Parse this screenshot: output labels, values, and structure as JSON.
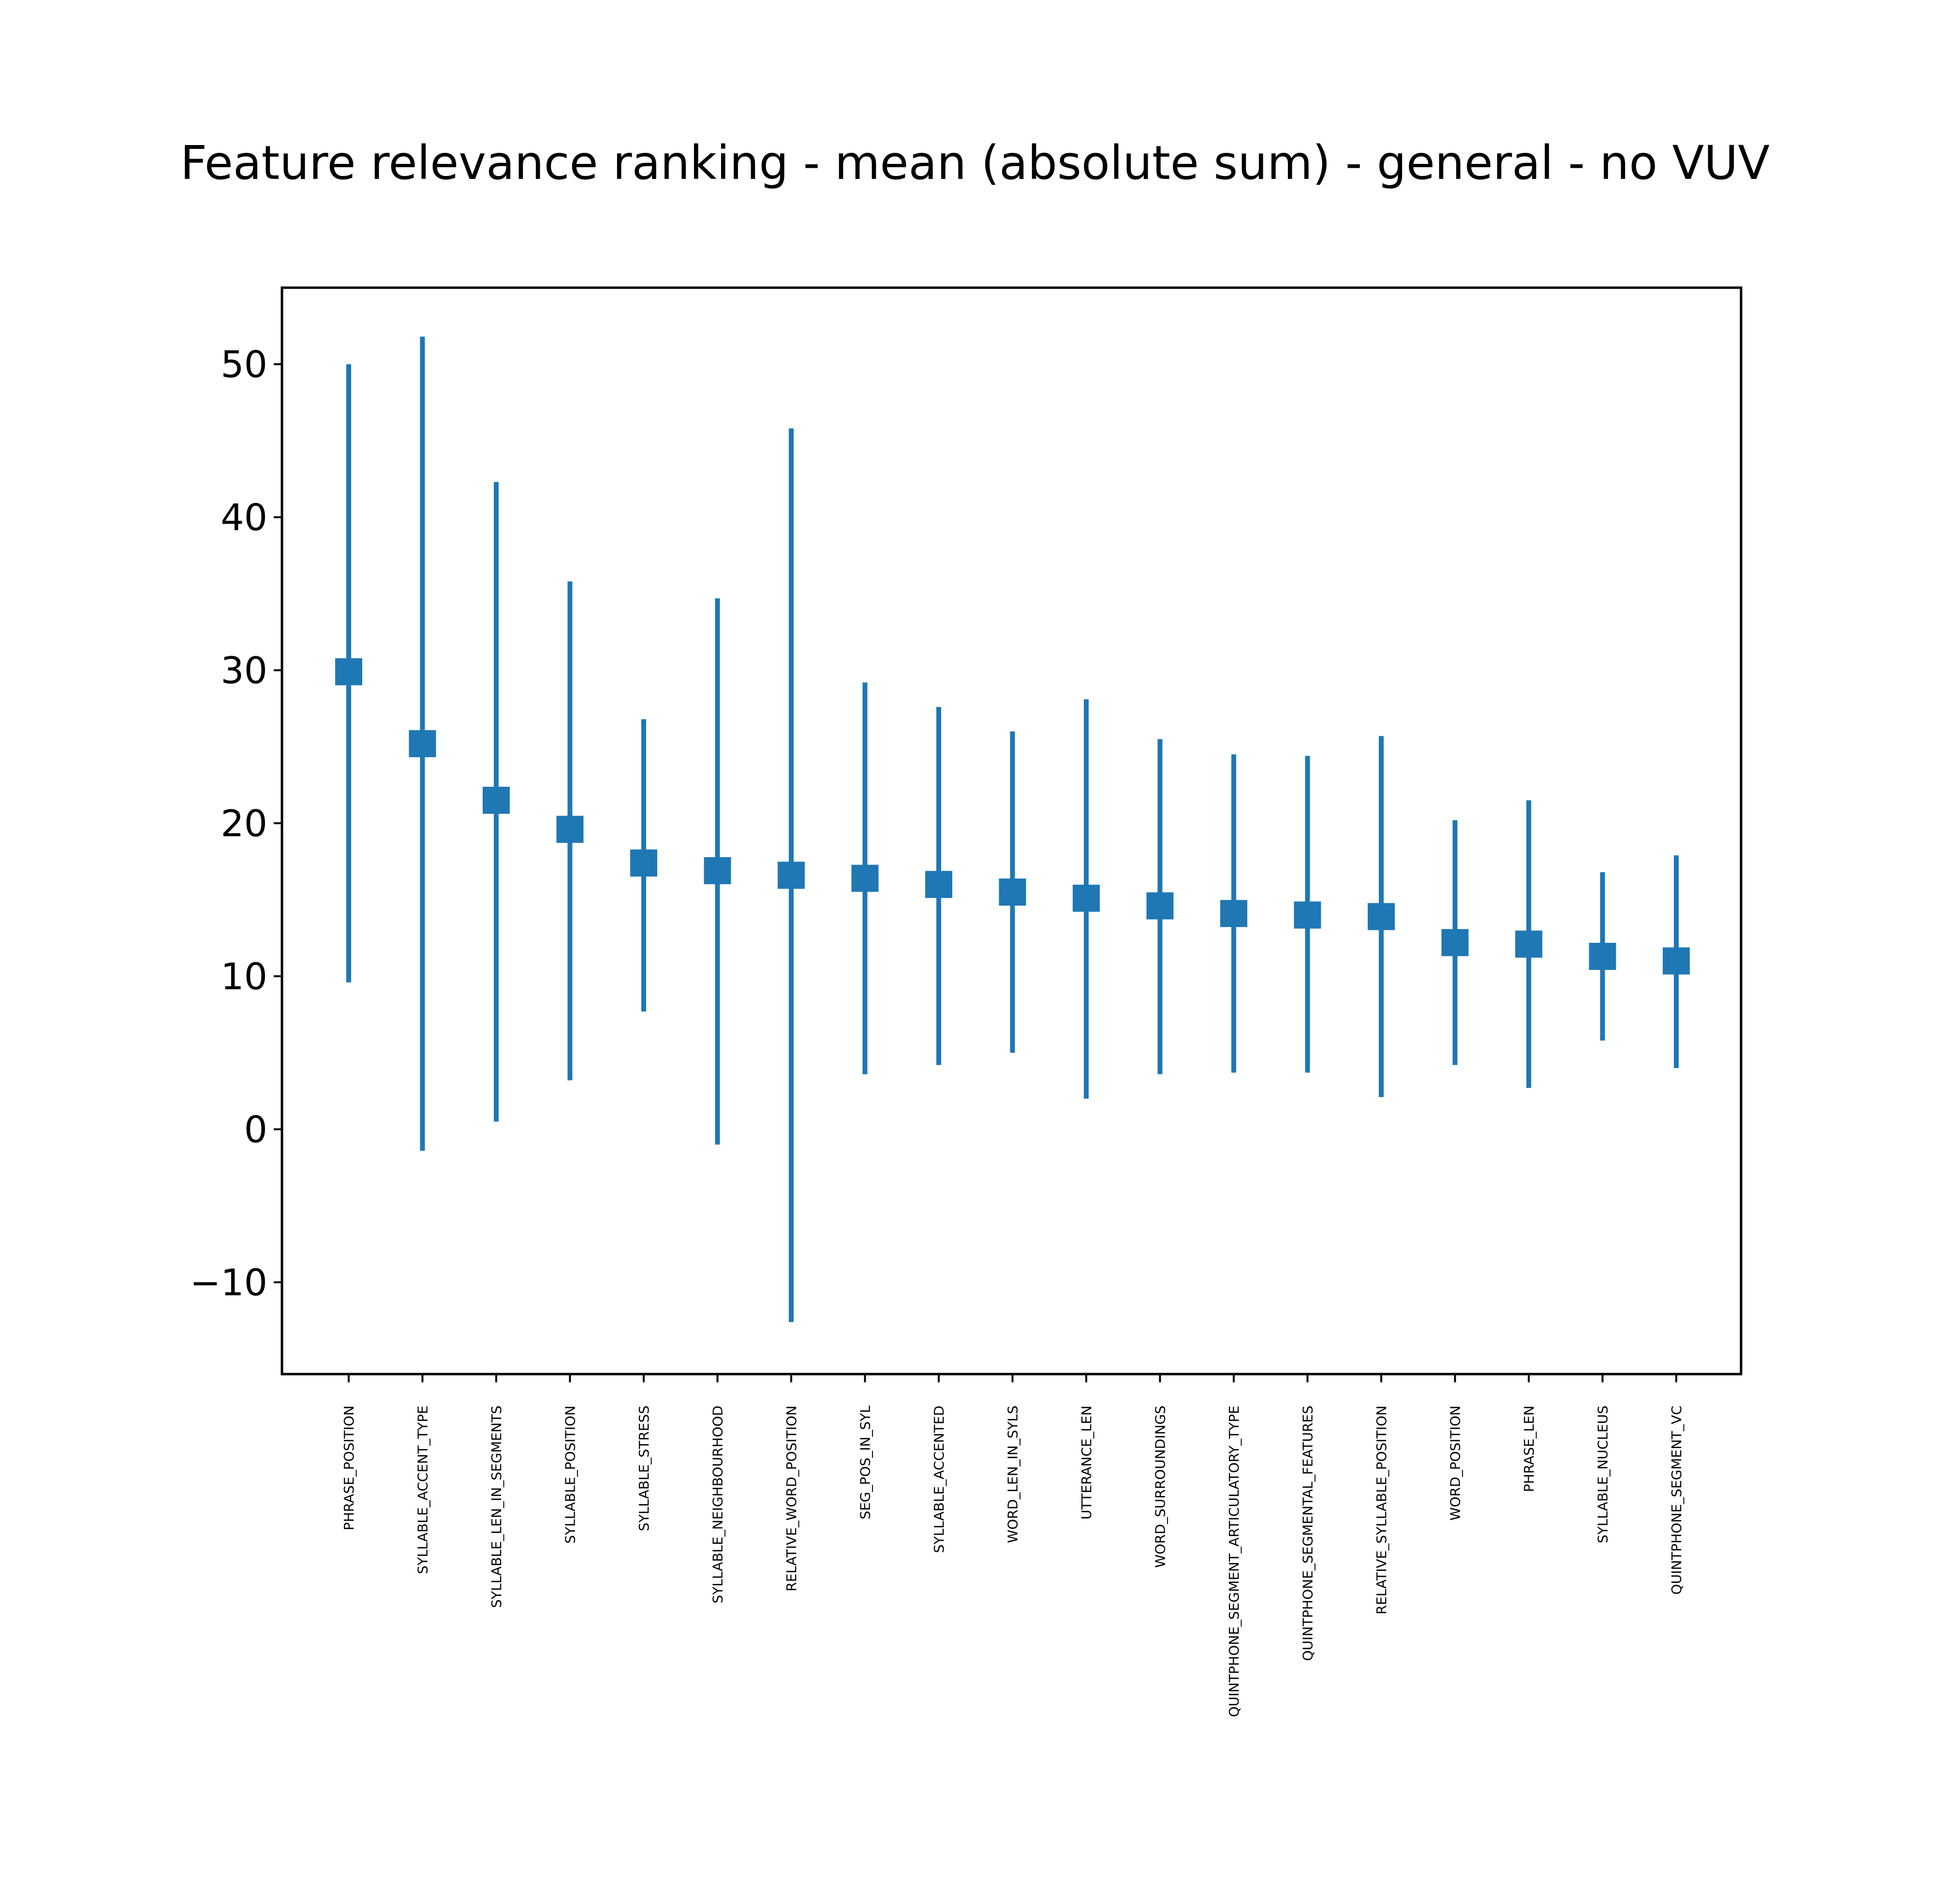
{
  "chart_data": {
    "type": "errorbar",
    "title": "Feature relevance ranking - mean (absolute sum) - general - no VUV",
    "xlabel": "",
    "ylabel": "",
    "ylim": [
      -16,
      55
    ],
    "yticks": [
      -10,
      0,
      10,
      20,
      30,
      40,
      50
    ],
    "ytick_labels": [
      "−10",
      "0",
      "10",
      "20",
      "30",
      "40",
      "50"
    ],
    "grid": false,
    "legend": "none",
    "color": "#1f77b4",
    "categories": [
      "PHRASE_POSITION",
      "SYLLABLE_ACCENT_TYPE",
      "SYLLABLE_LEN_IN_SEGMENTS",
      "SYLLABLE_POSITION",
      "SYLLABLE_STRESS",
      "SYLLABLE_NEIGHBOURHOOD",
      "RELATIVE_WORD_POSITION",
      "SEG_POS_IN_SYL",
      "SYLLABLE_ACCENTED",
      "WORD_LEN_IN_SYLS",
      "UTTERANCE_LEN",
      "WORD_SURROUNDINGS",
      "QUINTPHONE_SEGMENT_ARTICULATORY_TYPE",
      "QUINTPHONE_SEGMENTAL_FEATURES",
      "RELATIVE_SYLLABLE_POSITION",
      "WORD_POSITION",
      "PHRASE_LEN",
      "SYLLABLE_NUCLEUS",
      "QUINTPHONE_SEGMENT_VC"
    ],
    "means": [
      29.9,
      25.2,
      21.5,
      19.6,
      17.4,
      16.9,
      16.6,
      16.4,
      16.0,
      15.5,
      15.1,
      14.6,
      14.1,
      14.0,
      13.9,
      12.2,
      12.1,
      11.3,
      11.0
    ],
    "lower": [
      9.6,
      -1.4,
      0.5,
      3.2,
      7.7,
      -1.0,
      -12.6,
      3.6,
      4.2,
      5.0,
      2.0,
      3.6,
      3.7,
      3.7,
      2.1,
      4.2,
      2.7,
      5.8,
      4.0
    ],
    "upper": [
      50.0,
      51.8,
      42.3,
      35.8,
      26.8,
      34.7,
      45.8,
      29.2,
      27.6,
      26.0,
      28.1,
      25.5,
      24.5,
      24.4,
      25.7,
      20.2,
      21.5,
      16.8,
      17.9
    ]
  }
}
